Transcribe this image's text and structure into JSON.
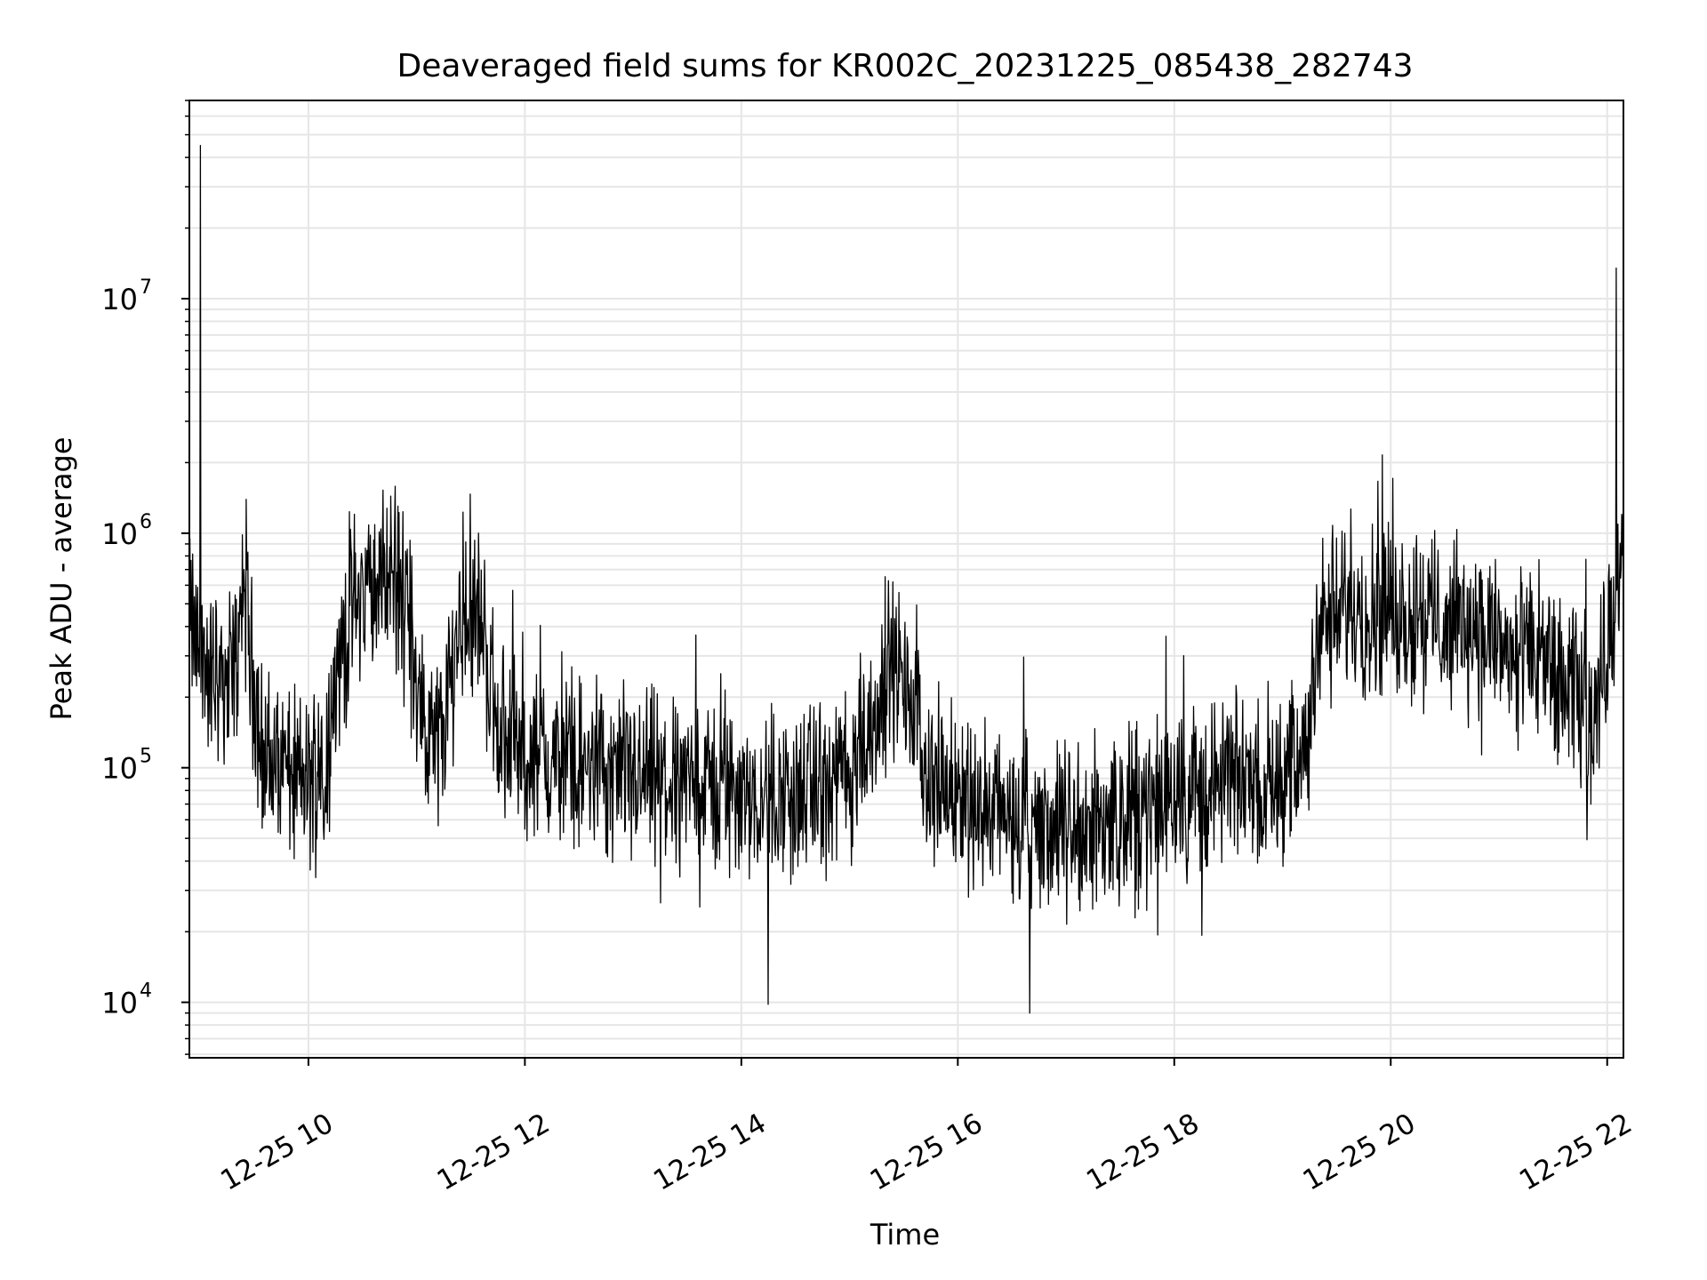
{
  "chart_data": {
    "type": "line",
    "title": "Deaveraged field sums for KR002C_20231225_085438_282743",
    "xlabel": "Time",
    "ylabel": "Peak ADU - average",
    "yscale": "log",
    "ylim": [
      5800,
      70000000
    ],
    "xlim": [
      "2023-12-25 08:54",
      "2023-12-25 22:09"
    ],
    "grid": true,
    "line_color": "#000000",
    "grid_color": "#e6e6e6",
    "x_ticks": [
      {
        "time": "2023-12-25 10:00",
        "label": "12-25 10"
      },
      {
        "time": "2023-12-25 12:00",
        "label": "12-25 12"
      },
      {
        "time": "2023-12-25 14:00",
        "label": "12-25 14"
      },
      {
        "time": "2023-12-25 16:00",
        "label": "12-25 16"
      },
      {
        "time": "2023-12-25 18:00",
        "label": "12-25 18"
      },
      {
        "time": "2023-12-25 20:00",
        "label": "12-25 20"
      },
      {
        "time": "2023-12-25 22:00",
        "label": "12-25 22"
      }
    ],
    "y_ticks": [
      {
        "value": 10000,
        "base": "10",
        "exp": "4"
      },
      {
        "value": 100000,
        "base": "10",
        "exp": "5"
      },
      {
        "value": 1000000,
        "base": "10",
        "exp": "6"
      },
      {
        "value": 10000000,
        "base": "10",
        "exp": "7"
      }
    ],
    "series": [
      {
        "x": [
          "2023-12-25 08:54",
          "2023-12-25 08:57",
          "2023-12-25 09:00",
          "2023-12-25 09:05",
          "2023-12-25 09:10",
          "2023-12-25 09:15",
          "2023-12-25 09:20",
          "2023-12-25 09:24",
          "2023-12-25 09:30",
          "2023-12-25 09:35",
          "2023-12-25 09:40",
          "2023-12-25 09:50",
          "2023-12-25 10:00",
          "2023-12-25 10:10",
          "2023-12-25 10:18",
          "2023-12-25 10:25",
          "2023-12-25 10:35",
          "2023-12-25 10:45",
          "2023-12-25 10:55",
          "2023-12-25 11:05",
          "2023-12-25 11:15",
          "2023-12-25 11:25",
          "2023-12-25 11:35",
          "2023-12-25 11:45",
          "2023-12-25 12:00",
          "2023-12-25 12:30",
          "2023-12-25 13:00",
          "2023-12-25 13:30",
          "2023-12-25 14:00",
          "2023-12-25 14:30",
          "2023-12-25 15:00",
          "2023-12-25 15:15",
          "2023-12-25 15:25",
          "2023-12-25 15:45",
          "2023-12-25 16:00",
          "2023-12-25 16:30",
          "2023-12-25 17:00",
          "2023-12-25 17:30",
          "2023-12-25 18:00",
          "2023-12-25 18:30",
          "2023-12-25 19:00",
          "2023-12-25 19:13",
          "2023-12-25 19:20",
          "2023-12-25 19:45",
          "2023-12-25 20:15",
          "2023-12-25 20:45",
          "2023-12-25 21:15",
          "2023-12-25 21:35",
          "2023-12-25 21:45",
          "2023-12-25 21:55",
          "2023-12-25 22:02",
          "2023-12-25 22:09"
        ],
        "y": [
          450000,
          350000,
          300000,
          250000,
          240000,
          260000,
          280000,
          600000,
          220000,
          110000,
          100000,
          90000,
          85000,
          110000,
          300000,
          500000,
          600000,
          650000,
          550000,
          120000,
          150000,
          500000,
          450000,
          150000,
          110000,
          100000,
          90000,
          85000,
          80000,
          75000,
          90000,
          180000,
          280000,
          90000,
          80000,
          60000,
          55000,
          60000,
          80000,
          85000,
          95000,
          110000,
          420000,
          480000,
          450000,
          400000,
          300000,
          220000,
          200000,
          180000,
          450000,
          650000
        ]
      }
    ],
    "spikes": [
      {
        "time": "2023-12-25 09:00",
        "value": 45000000
      },
      {
        "time": "2023-12-25 22:05",
        "value": 13500000
      },
      {
        "time": "2023-12-25 16:40",
        "value": 9000
      },
      {
        "time": "2023-12-25 14:15",
        "value": 9800
      }
    ]
  }
}
